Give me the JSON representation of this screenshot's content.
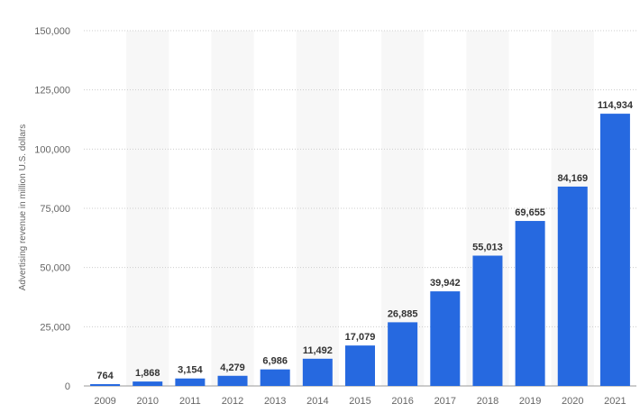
{
  "chart_data": {
    "type": "bar",
    "categories": [
      "2009",
      "2010",
      "2011",
      "2012",
      "2013",
      "2014",
      "2015",
      "2016",
      "2017",
      "2018",
      "2019",
      "2020",
      "2021"
    ],
    "values": [
      764,
      1868,
      3154,
      4279,
      6986,
      11492,
      17079,
      26885,
      39942,
      55013,
      69655,
      84169,
      114934
    ],
    "value_labels": [
      "764",
      "1,868",
      "3,154",
      "4,279",
      "6,986",
      "11,492",
      "17,079",
      "26,885",
      "39,942",
      "55,013",
      "69,655",
      "84,169",
      "114,934"
    ],
    "ylabel": "Advertising revenue in million U.S. dollars",
    "xlabel": "",
    "ylim": [
      0,
      150000
    ],
    "yticks": [
      0,
      25000,
      50000,
      75000,
      100000,
      125000,
      150000
    ],
    "ytick_labels": [
      "0",
      "25,000",
      "50,000",
      "75,000",
      "100,000",
      "125,000",
      "150,000"
    ],
    "grid": true,
    "colors": {
      "bar": "#2669e0",
      "band": "#f7f7f7",
      "grid": "#cccccc"
    }
  }
}
